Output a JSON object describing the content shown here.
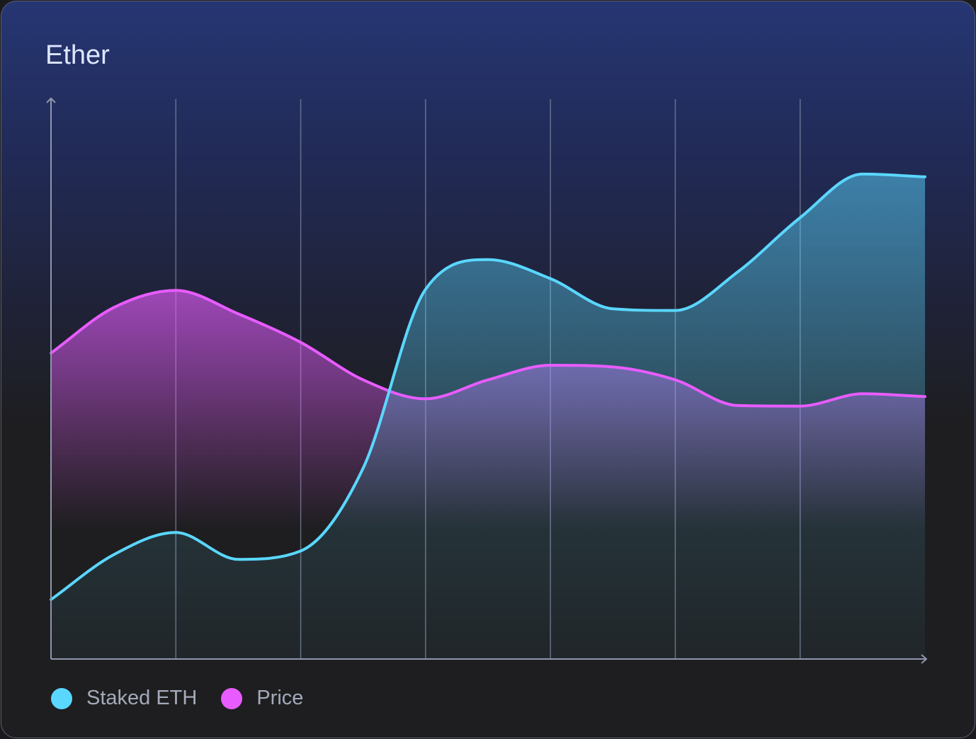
{
  "card": {
    "title": "Ether"
  },
  "chart_data": {
    "type": "area",
    "title": "Ether",
    "xlabel": "",
    "ylabel": "",
    "x": [
      0,
      0.5,
      1,
      1.5,
      2,
      2.5,
      3,
      3.5,
      4,
      4.5,
      5,
      5.5,
      6,
      6.5,
      7
    ],
    "ylim": [
      0,
      100
    ],
    "grid": "vertical",
    "legend": "bottom-left",
    "series": [
      {
        "name": "Staked ETH",
        "color": "#5ad7ff",
        "values": [
          10.5,
          18.5,
          22.5,
          17.7,
          19.2,
          34,
          66,
          71.3,
          67.9,
          62.5,
          62.2,
          69.1,
          78.8,
          86.6,
          86.1
        ]
      },
      {
        "name": "Price",
        "color": "#e85cff",
        "values": [
          54.6,
          62.7,
          65.8,
          61.6,
          56.5,
          49.8,
          46.4,
          49.8,
          52.4,
          52.1,
          49.8,
          45.2,
          45.1,
          47.3,
          46.8
        ]
      }
    ]
  },
  "legend": [
    {
      "label": "Staked ETH",
      "color": "#5ad7ff"
    },
    {
      "label": "Price",
      "color": "#e85cff"
    }
  ]
}
